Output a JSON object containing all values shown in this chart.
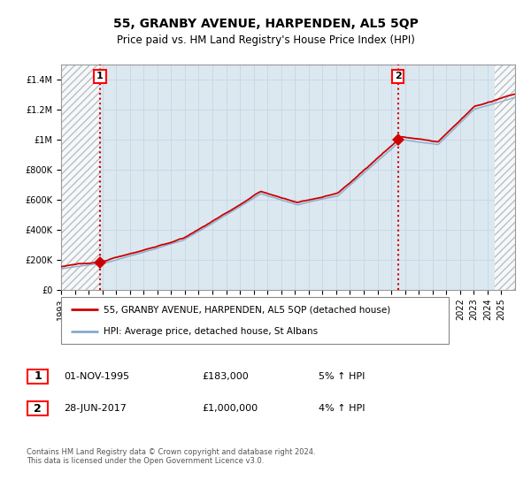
{
  "title": "55, GRANBY AVENUE, HARPENDEN, AL5 5QP",
  "subtitle": "Price paid vs. HM Land Registry's House Price Index (HPI)",
  "ylabel_ticks": [
    "£0",
    "£200K",
    "£400K",
    "£600K",
    "£800K",
    "£1M",
    "£1.2M",
    "£1.4M"
  ],
  "ytick_values": [
    0,
    200000,
    400000,
    600000,
    800000,
    1000000,
    1200000,
    1400000
  ],
  "ylim": [
    0,
    1500000
  ],
  "xlim_start": 1993,
  "xlim_end": 2026,
  "red_line_color": "#cc0000",
  "blue_line_color": "#88aacc",
  "marker_color": "#cc0000",
  "vline_color1": "#cc0000",
  "vline_color2": "#cc0000",
  "hatch_color": "#bbbbbb",
  "grid_color": "#c8d8e8",
  "bg_color": "#dce8f0",
  "annotation1_label": "1",
  "annotation2_label": "2",
  "sale1_year": 1995.83,
  "sale1_value": 183000,
  "sale2_year": 2017.49,
  "sale2_value": 1000000,
  "legend_label1": "55, GRANBY AVENUE, HARPENDEN, AL5 5QP (detached house)",
  "legend_label2": "HPI: Average price, detached house, St Albans",
  "table_row1": [
    "1",
    "01-NOV-1995",
    "£183,000",
    "5% ↑ HPI"
  ],
  "table_row2": [
    "2",
    "28-JUN-2017",
    "£1,000,000",
    "4% ↑ HPI"
  ],
  "footer": "Contains HM Land Registry data © Crown copyright and database right 2024.\nThis data is licensed under the Open Government Licence v3.0.",
  "title_fontsize": 10,
  "subtitle_fontsize": 8.5,
  "tick_fontsize": 7,
  "legend_fontsize": 7.5,
  "table_fontsize": 8,
  "footer_fontsize": 6
}
